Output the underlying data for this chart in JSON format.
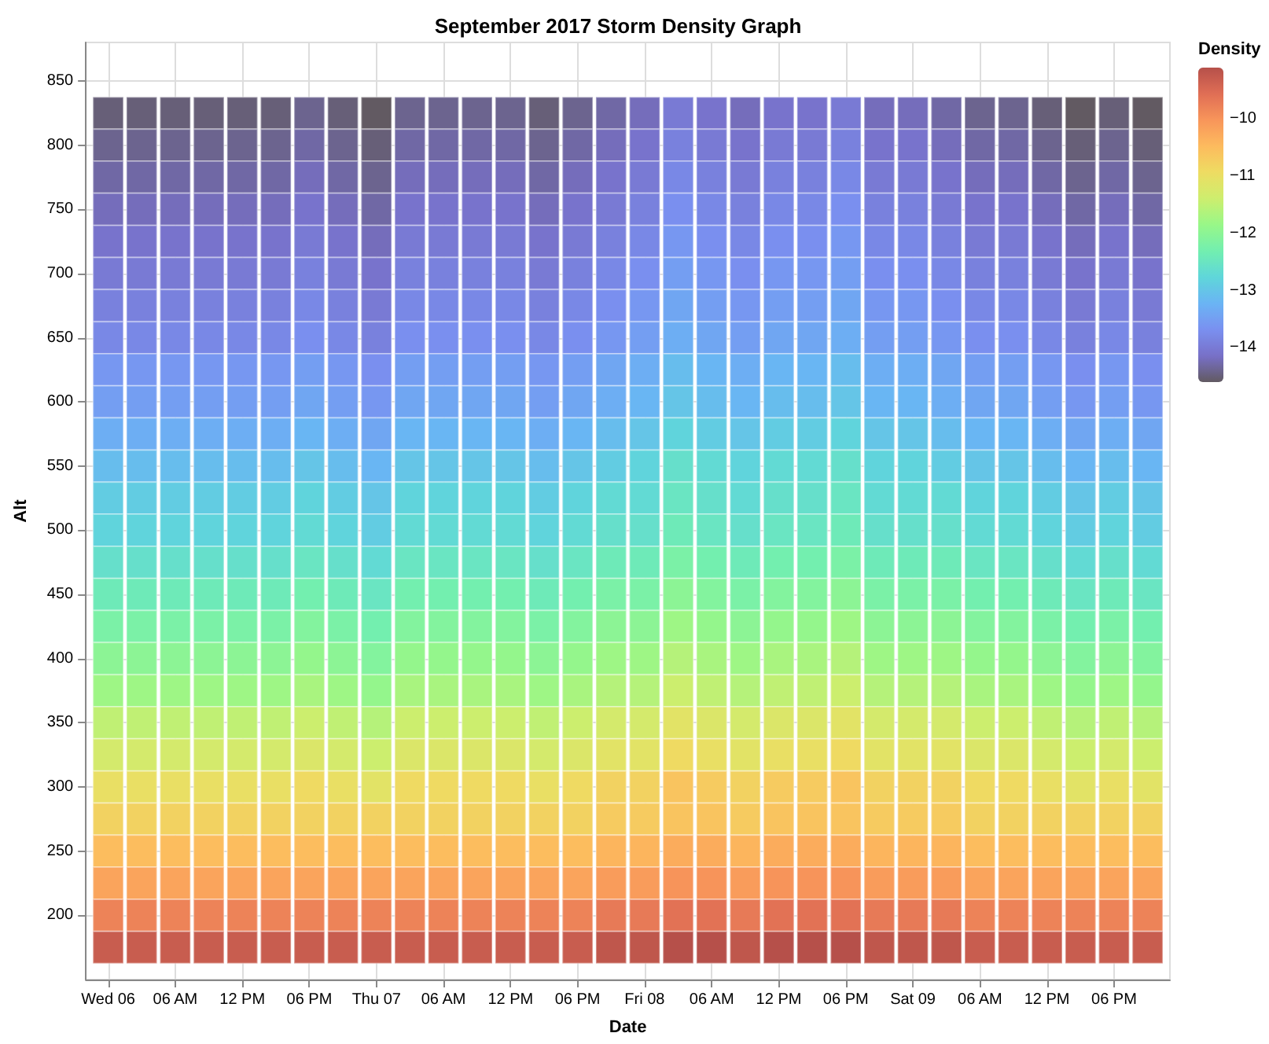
{
  "chart_data": {
    "type": "heatmap",
    "title": "September 2017 Storm Density Graph",
    "xlabel": "Date",
    "ylabel": "Alt",
    "legend_title": "Density",
    "grid": true,
    "x": [
      "2017-09-06T00:00",
      "2017-09-06T03:00",
      "2017-09-06T06:00",
      "2017-09-06T09:00",
      "2017-09-06T12:00",
      "2017-09-06T15:00",
      "2017-09-06T18:00",
      "2017-09-06T21:00",
      "2017-09-07T00:00",
      "2017-09-07T03:00",
      "2017-09-07T06:00",
      "2017-09-07T09:00",
      "2017-09-07T12:00",
      "2017-09-07T15:00",
      "2017-09-07T18:00",
      "2017-09-07T21:00",
      "2017-09-08T00:00",
      "2017-09-08T03:00",
      "2017-09-08T06:00",
      "2017-09-08T09:00",
      "2017-09-08T12:00",
      "2017-09-08T15:00",
      "2017-09-08T18:00",
      "2017-09-08T21:00",
      "2017-09-09T00:00",
      "2017-09-09T03:00",
      "2017-09-09T06:00",
      "2017-09-09T09:00",
      "2017-09-09T12:00",
      "2017-09-09T15:00",
      "2017-09-09T18:00",
      "2017-09-09T21:00"
    ],
    "y": [
      825,
      800,
      775,
      750,
      725,
      700,
      675,
      650,
      625,
      600,
      575,
      550,
      525,
      500,
      475,
      450,
      425,
      400,
      375,
      350,
      325,
      300,
      275,
      250,
      225,
      200,
      175
    ],
    "xlim": [
      "2017-09-05T22:00",
      "2017-09-09T23:00"
    ],
    "xticks": [
      {
        "value": "2017-09-06T00:00",
        "label": "Wed 06"
      },
      {
        "value": "2017-09-06T06:00",
        "label": "06 AM"
      },
      {
        "value": "2017-09-06T12:00",
        "label": "12 PM"
      },
      {
        "value": "2017-09-06T18:00",
        "label": "06 PM"
      },
      {
        "value": "2017-09-07T00:00",
        "label": "Thu 07"
      },
      {
        "value": "2017-09-07T06:00",
        "label": "06 AM"
      },
      {
        "value": "2017-09-07T12:00",
        "label": "12 PM"
      },
      {
        "value": "2017-09-07T18:00",
        "label": "06 PM"
      },
      {
        "value": "2017-09-08T00:00",
        "label": "Fri 08"
      },
      {
        "value": "2017-09-08T06:00",
        "label": "06 AM"
      },
      {
        "value": "2017-09-08T12:00",
        "label": "12 PM"
      },
      {
        "value": "2017-09-08T18:00",
        "label": "06 PM"
      },
      {
        "value": "2017-09-09T00:00",
        "label": "Sat 09"
      },
      {
        "value": "2017-09-09T06:00",
        "label": "06 AM"
      },
      {
        "value": "2017-09-09T12:00",
        "label": "12 PM"
      },
      {
        "value": "2017-09-09T18:00",
        "label": "06 PM"
      }
    ],
    "ylim": [
      150,
      880
    ],
    "yticks": [
      200,
      250,
      300,
      350,
      400,
      450,
      500,
      550,
      600,
      650,
      700,
      750,
      800,
      850
    ],
    "clim": [
      -14.6,
      -9.1
    ],
    "cticks": [
      -14,
      -13,
      -12,
      -11,
      -10
    ],
    "colors": [
      "#625a62",
      "#7870c8",
      "#7a90f0",
      "#6ab4f4",
      "#5fd6da",
      "#72efb0",
      "#98f788",
      "#cdee6e",
      "#eedc62",
      "#fdbb5e",
      "#f8955a",
      "#e06e55",
      "#b6504a"
    ],
    "cells": [
      [
        -14.5,
        -14.5,
        -14.5,
        -14.5,
        -14.5,
        -14.5,
        -14.4,
        -14.5,
        -14.6,
        -14.4,
        -14.4,
        -14.4,
        -14.4,
        -14.5,
        -14.4,
        -14.3,
        -14.2,
        -14.0,
        -14.1,
        -14.2,
        -14.1,
        -14.1,
        -14.0,
        -14.2,
        -14.2,
        -14.3,
        -14.4,
        -14.4,
        -14.5,
        -14.6,
        -14.5,
        -14.6
      ],
      [
        -14.4,
        -14.4,
        -14.4,
        -14.4,
        -14.4,
        -14.4,
        -14.3,
        -14.4,
        -14.5,
        -14.3,
        -14.3,
        -14.3,
        -14.3,
        -14.4,
        -14.3,
        -14.2,
        -14.1,
        -13.9,
        -14.0,
        -14.1,
        -14.0,
        -14.0,
        -13.9,
        -14.1,
        -14.1,
        -14.2,
        -14.3,
        -14.3,
        -14.4,
        -14.5,
        -14.4,
        -14.5
      ],
      [
        -14.3,
        -14.3,
        -14.3,
        -14.3,
        -14.3,
        -14.3,
        -14.2,
        -14.3,
        -14.4,
        -14.2,
        -14.2,
        -14.2,
        -14.2,
        -14.3,
        -14.2,
        -14.1,
        -14.0,
        -13.8,
        -13.9,
        -14.0,
        -13.9,
        -13.9,
        -13.8,
        -14.0,
        -14.0,
        -14.1,
        -14.2,
        -14.2,
        -14.3,
        -14.4,
        -14.3,
        -14.4
      ],
      [
        -14.2,
        -14.2,
        -14.2,
        -14.2,
        -14.2,
        -14.2,
        -14.1,
        -14.2,
        -14.3,
        -14.1,
        -14.1,
        -14.1,
        -14.1,
        -14.2,
        -14.1,
        -14.0,
        -13.9,
        -13.7,
        -13.8,
        -13.9,
        -13.8,
        -13.8,
        -13.7,
        -13.9,
        -13.9,
        -14.0,
        -14.1,
        -14.1,
        -14.2,
        -14.3,
        -14.2,
        -14.3
      ],
      [
        -14.1,
        -14.1,
        -14.1,
        -14.1,
        -14.1,
        -14.1,
        -14.0,
        -14.1,
        -14.2,
        -14.0,
        -14.0,
        -14.0,
        -14.0,
        -14.1,
        -14.0,
        -13.9,
        -13.8,
        -13.6,
        -13.7,
        -13.8,
        -13.7,
        -13.7,
        -13.6,
        -13.8,
        -13.8,
        -13.9,
        -14.0,
        -14.0,
        -14.1,
        -14.2,
        -14.1,
        -14.2
      ],
      [
        -14.0,
        -14.0,
        -14.0,
        -14.0,
        -14.0,
        -14.0,
        -13.9,
        -14.0,
        -14.1,
        -13.9,
        -13.9,
        -13.9,
        -13.9,
        -14.0,
        -13.9,
        -13.8,
        -13.7,
        -13.5,
        -13.6,
        -13.7,
        -13.6,
        -13.6,
        -13.5,
        -13.7,
        -13.7,
        -13.8,
        -13.9,
        -13.9,
        -14.0,
        -14.1,
        -14.0,
        -14.1
      ],
      [
        -13.9,
        -13.9,
        -13.9,
        -13.9,
        -13.9,
        -13.9,
        -13.8,
        -13.9,
        -14.0,
        -13.8,
        -13.8,
        -13.8,
        -13.8,
        -13.9,
        -13.8,
        -13.7,
        -13.6,
        -13.4,
        -13.5,
        -13.6,
        -13.5,
        -13.5,
        -13.4,
        -13.6,
        -13.6,
        -13.7,
        -13.8,
        -13.8,
        -13.9,
        -14.0,
        -13.9,
        -14.0
      ],
      [
        -13.8,
        -13.8,
        -13.8,
        -13.8,
        -13.8,
        -13.8,
        -13.7,
        -13.8,
        -13.9,
        -13.7,
        -13.7,
        -13.7,
        -13.7,
        -13.8,
        -13.7,
        -13.6,
        -13.5,
        -13.3,
        -13.4,
        -13.5,
        -13.4,
        -13.4,
        -13.3,
        -13.5,
        -13.5,
        -13.6,
        -13.7,
        -13.7,
        -13.8,
        -13.9,
        -13.8,
        -13.9
      ],
      [
        -13.6,
        -13.6,
        -13.6,
        -13.6,
        -13.6,
        -13.6,
        -13.5,
        -13.6,
        -13.7,
        -13.5,
        -13.5,
        -13.5,
        -13.5,
        -13.6,
        -13.5,
        -13.4,
        -13.3,
        -13.1,
        -13.2,
        -13.3,
        -13.2,
        -13.2,
        -13.1,
        -13.3,
        -13.3,
        -13.4,
        -13.5,
        -13.5,
        -13.6,
        -13.7,
        -13.6,
        -13.7
      ],
      [
        -13.5,
        -13.5,
        -13.5,
        -13.5,
        -13.5,
        -13.5,
        -13.4,
        -13.5,
        -13.6,
        -13.4,
        -13.4,
        -13.4,
        -13.4,
        -13.5,
        -13.4,
        -13.3,
        -13.2,
        -13.0,
        -13.1,
        -13.2,
        -13.1,
        -13.1,
        -13.0,
        -13.2,
        -13.2,
        -13.3,
        -13.4,
        -13.4,
        -13.5,
        -13.6,
        -13.5,
        -13.6
      ],
      [
        -13.3,
        -13.3,
        -13.3,
        -13.3,
        -13.3,
        -13.3,
        -13.2,
        -13.3,
        -13.4,
        -13.2,
        -13.2,
        -13.2,
        -13.2,
        -13.3,
        -13.2,
        -13.1,
        -13.0,
        -12.8,
        -12.9,
        -13.0,
        -12.9,
        -12.9,
        -12.8,
        -13.0,
        -13.0,
        -13.1,
        -13.2,
        -13.2,
        -13.3,
        -13.4,
        -13.3,
        -13.4
      ],
      [
        -13.1,
        -13.1,
        -13.1,
        -13.1,
        -13.1,
        -13.1,
        -13.0,
        -13.1,
        -13.2,
        -13.0,
        -13.0,
        -13.0,
        -13.0,
        -13.1,
        -13.0,
        -12.9,
        -12.8,
        -12.6,
        -12.7,
        -12.8,
        -12.7,
        -12.7,
        -12.6,
        -12.8,
        -12.8,
        -12.9,
        -13.0,
        -13.0,
        -13.1,
        -13.2,
        -13.1,
        -13.2
      ],
      [
        -12.9,
        -12.9,
        -12.9,
        -12.9,
        -12.9,
        -12.9,
        -12.8,
        -12.9,
        -13.0,
        -12.8,
        -12.8,
        -12.8,
        -12.8,
        -12.9,
        -12.8,
        -12.7,
        -12.7,
        -12.5,
        -12.6,
        -12.7,
        -12.6,
        -12.6,
        -12.5,
        -12.7,
        -12.7,
        -12.7,
        -12.8,
        -12.8,
        -12.9,
        -13.0,
        -12.9,
        -13.0
      ],
      [
        -12.8,
        -12.8,
        -12.8,
        -12.8,
        -12.8,
        -12.8,
        -12.7,
        -12.8,
        -12.9,
        -12.7,
        -12.7,
        -12.7,
        -12.7,
        -12.8,
        -12.7,
        -12.6,
        -12.6,
        -12.4,
        -12.5,
        -12.6,
        -12.5,
        -12.5,
        -12.4,
        -12.6,
        -12.6,
        -12.6,
        -12.7,
        -12.7,
        -12.8,
        -12.9,
        -12.8,
        -12.9
      ],
      [
        -12.6,
        -12.6,
        -12.6,
        -12.6,
        -12.6,
        -12.6,
        -12.5,
        -12.6,
        -12.7,
        -12.5,
        -12.5,
        -12.5,
        -12.5,
        -12.6,
        -12.5,
        -12.4,
        -12.4,
        -12.2,
        -12.3,
        -12.4,
        -12.3,
        -12.3,
        -12.2,
        -12.4,
        -12.4,
        -12.4,
        -12.5,
        -12.5,
        -12.6,
        -12.7,
        -12.6,
        -12.7
      ],
      [
        -12.4,
        -12.4,
        -12.4,
        -12.4,
        -12.4,
        -12.4,
        -12.3,
        -12.4,
        -12.5,
        -12.3,
        -12.3,
        -12.3,
        -12.3,
        -12.4,
        -12.3,
        -12.2,
        -12.2,
        -12.0,
        -12.1,
        -12.2,
        -12.1,
        -12.1,
        -12.0,
        -12.2,
        -12.2,
        -12.2,
        -12.3,
        -12.3,
        -12.4,
        -12.5,
        -12.4,
        -12.5
      ],
      [
        -12.2,
        -12.2,
        -12.2,
        -12.2,
        -12.2,
        -12.2,
        -12.1,
        -12.2,
        -12.3,
        -12.1,
        -12.1,
        -12.1,
        -12.1,
        -12.2,
        -12.1,
        -12.0,
        -12.0,
        -11.8,
        -11.9,
        -12.0,
        -11.9,
        -11.9,
        -11.8,
        -12.0,
        -12.0,
        -12.0,
        -12.1,
        -12.1,
        -12.2,
        -12.3,
        -12.2,
        -12.3
      ],
      [
        -12.0,
        -12.0,
        -12.0,
        -12.0,
        -12.0,
        -12.0,
        -11.9,
        -12.0,
        -12.1,
        -11.9,
        -11.9,
        -11.9,
        -11.9,
        -12.0,
        -11.9,
        -11.8,
        -11.8,
        -11.6,
        -11.7,
        -11.8,
        -11.7,
        -11.7,
        -11.6,
        -11.8,
        -11.8,
        -11.8,
        -11.9,
        -11.9,
        -12.0,
        -12.1,
        -12.0,
        -12.1
      ],
      [
        -11.8,
        -11.8,
        -11.8,
        -11.8,
        -11.8,
        -11.8,
        -11.7,
        -11.8,
        -11.9,
        -11.7,
        -11.7,
        -11.7,
        -11.7,
        -11.8,
        -11.7,
        -11.6,
        -11.6,
        -11.4,
        -11.5,
        -11.6,
        -11.5,
        -11.5,
        -11.4,
        -11.6,
        -11.6,
        -11.6,
        -11.7,
        -11.7,
        -11.8,
        -11.9,
        -11.8,
        -11.9
      ],
      [
        -11.5,
        -11.5,
        -11.5,
        -11.5,
        -11.5,
        -11.5,
        -11.4,
        -11.5,
        -11.6,
        -11.4,
        -11.4,
        -11.4,
        -11.4,
        -11.5,
        -11.4,
        -11.3,
        -11.3,
        -11.1,
        -11.2,
        -11.3,
        -11.2,
        -11.2,
        -11.1,
        -11.3,
        -11.3,
        -11.3,
        -11.4,
        -11.4,
        -11.5,
        -11.6,
        -11.5,
        -11.6
      ],
      [
        -11.3,
        -11.3,
        -11.3,
        -11.3,
        -11.3,
        -11.3,
        -11.2,
        -11.3,
        -11.4,
        -11.2,
        -11.2,
        -11.2,
        -11.2,
        -11.3,
        -11.2,
        -11.1,
        -11.1,
        -10.9,
        -11.0,
        -11.1,
        -11.0,
        -11.0,
        -10.9,
        -11.1,
        -11.1,
        -11.1,
        -11.2,
        -11.2,
        -11.3,
        -11.4,
        -11.3,
        -11.4
      ],
      [
        -11.0,
        -11.0,
        -11.0,
        -11.0,
        -11.0,
        -11.0,
        -10.9,
        -11.0,
        -11.1,
        -10.9,
        -10.9,
        -10.9,
        -10.9,
        -11.0,
        -10.9,
        -10.8,
        -10.8,
        -10.6,
        -10.7,
        -10.8,
        -10.7,
        -10.7,
        -10.6,
        -10.8,
        -10.8,
        -10.8,
        -10.9,
        -10.9,
        -11.0,
        -11.1,
        -11.0,
        -11.1
      ],
      [
        -10.8,
        -10.8,
        -10.8,
        -10.8,
        -10.8,
        -10.8,
        -10.8,
        -10.8,
        -10.8,
        -10.8,
        -10.8,
        -10.8,
        -10.8,
        -10.8,
        -10.8,
        -10.7,
        -10.7,
        -10.6,
        -10.6,
        -10.7,
        -10.6,
        -10.6,
        -10.6,
        -10.7,
        -10.7,
        -10.7,
        -10.8,
        -10.8,
        -10.8,
        -10.8,
        -10.8,
        -10.8
      ],
      [
        -10.5,
        -10.5,
        -10.5,
        -10.5,
        -10.5,
        -10.5,
        -10.5,
        -10.5,
        -10.5,
        -10.5,
        -10.5,
        -10.5,
        -10.5,
        -10.5,
        -10.5,
        -10.4,
        -10.4,
        -10.3,
        -10.3,
        -10.4,
        -10.3,
        -10.3,
        -10.3,
        -10.4,
        -10.4,
        -10.4,
        -10.5,
        -10.5,
        -10.5,
        -10.5,
        -10.5,
        -10.5
      ],
      [
        -10.2,
        -10.2,
        -10.2,
        -10.2,
        -10.2,
        -10.2,
        -10.2,
        -10.2,
        -10.2,
        -10.2,
        -10.2,
        -10.2,
        -10.2,
        -10.2,
        -10.2,
        -10.1,
        -10.1,
        -10.0,
        -10.0,
        -10.1,
        -10.0,
        -10.0,
        -10.0,
        -10.1,
        -10.1,
        -10.1,
        -10.2,
        -10.2,
        -10.2,
        -10.2,
        -10.2,
        -10.2
      ],
      [
        -9.8,
        -9.8,
        -9.8,
        -9.8,
        -9.8,
        -9.8,
        -9.8,
        -9.8,
        -9.8,
        -9.8,
        -9.8,
        -9.8,
        -9.8,
        -9.8,
        -9.8,
        -9.7,
        -9.7,
        -9.6,
        -9.6,
        -9.7,
        -9.6,
        -9.6,
        -9.6,
        -9.7,
        -9.7,
        -9.7,
        -9.8,
        -9.8,
        -9.8,
        -9.8,
        -9.8,
        -9.8
      ],
      [
        -9.3,
        -9.3,
        -9.3,
        -9.3,
        -9.3,
        -9.3,
        -9.3,
        -9.3,
        -9.3,
        -9.3,
        -9.3,
        -9.3,
        -9.3,
        -9.3,
        -9.3,
        -9.2,
        -9.2,
        -9.1,
        -9.1,
        -9.2,
        -9.1,
        -9.1,
        -9.1,
        -9.2,
        -9.2,
        -9.2,
        -9.3,
        -9.3,
        -9.3,
        -9.3,
        -9.3,
        -9.3
      ]
    ]
  }
}
